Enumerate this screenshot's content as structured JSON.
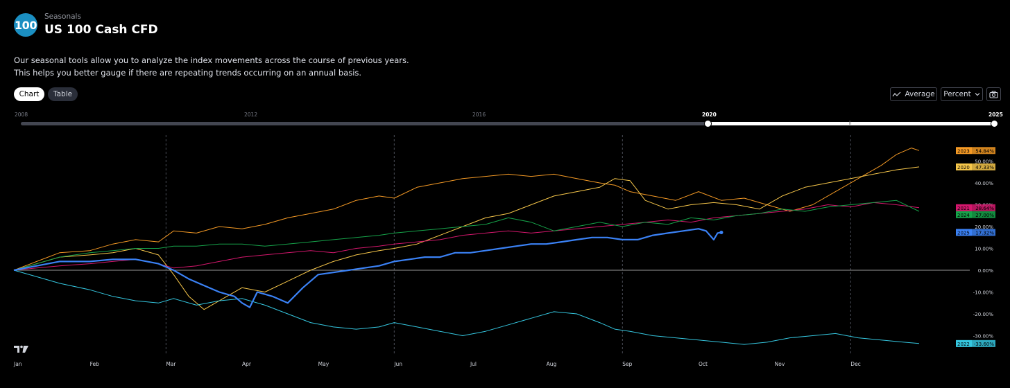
{
  "header": {
    "badge": "100",
    "section": "Seasonals",
    "title": "US 100 Cash CFD",
    "description_lines": [
      "Our seasonal tools allow you to analyze the index movements across the course of previous years.",
      "This helps you better gauge if there are repeating trends occurring on an annual basis."
    ]
  },
  "tabs": [
    {
      "label": "Chart",
      "active": true
    },
    {
      "label": "Table",
      "active": false
    }
  ],
  "controls": {
    "average_label": "Average",
    "percent_label": "Percent",
    "icons": [
      "line-chart-icon",
      "chevron-down-icon",
      "camera-icon"
    ]
  },
  "year_slider": {
    "ticks": [
      "2008",
      "2012",
      "2016",
      "2020",
      "2025"
    ],
    "selected_from": "2020",
    "selected_to": "2025"
  },
  "colors": {
    "background": "#000000",
    "2020": "#f7c74a",
    "2021": "#d5176d",
    "2022": "#35c7e0",
    "2023": "#f59a25",
    "2024": "#16a34a",
    "2025": "#3b82f6"
  },
  "chart_data": {
    "type": "line",
    "x_axis": {
      "type": "month",
      "ticks": [
        "Jan",
        "Feb",
        "Mar",
        "Apr",
        "May",
        "Jun",
        "Jul",
        "Aug",
        "Sep",
        "Oct",
        "Nov",
        "Dec"
      ],
      "range_months": [
        0,
        11.9
      ],
      "quarter_gridlines_at": [
        "Mar",
        "Jun",
        "Sep",
        "Dec"
      ]
    },
    "y_axis": {
      "unit": "%",
      "ticks": [
        "50.00%",
        "40.00%",
        "30.00%",
        "20.00%",
        "10.00%",
        "0.00%",
        "-10.00%",
        "-20.00%",
        "-30.00%"
      ],
      "range": [
        -42,
        60
      ],
      "zero_line": true
    },
    "series": [
      {
        "name": "2023",
        "label": "54.84%",
        "color": "#f59a25",
        "width": 1,
        "points": [
          [
            0,
            0
          ],
          [
            0.3,
            4
          ],
          [
            0.6,
            8
          ],
          [
            1,
            9
          ],
          [
            1.3,
            12
          ],
          [
            1.6,
            14
          ],
          [
            1.9,
            13
          ],
          [
            2.1,
            18
          ],
          [
            2.4,
            17
          ],
          [
            2.7,
            20
          ],
          [
            3,
            19
          ],
          [
            3.3,
            21
          ],
          [
            3.6,
            24
          ],
          [
            3.9,
            26
          ],
          [
            4.2,
            28
          ],
          [
            4.5,
            32
          ],
          [
            4.8,
            34
          ],
          [
            5,
            33
          ],
          [
            5.3,
            38
          ],
          [
            5.6,
            40
          ],
          [
            5.9,
            42
          ],
          [
            6.2,
            43
          ],
          [
            6.5,
            44
          ],
          [
            6.8,
            43
          ],
          [
            7.1,
            44
          ],
          [
            7.4,
            42
          ],
          [
            7.7,
            40
          ],
          [
            7.9,
            39
          ],
          [
            8.1,
            36
          ],
          [
            8.4,
            34
          ],
          [
            8.7,
            32
          ],
          [
            9,
            36
          ],
          [
            9.3,
            32
          ],
          [
            9.6,
            33
          ],
          [
            9.9,
            30
          ],
          [
            10.2,
            27
          ],
          [
            10.5,
            30
          ],
          [
            10.8,
            36
          ],
          [
            11.1,
            42
          ],
          [
            11.4,
            48
          ],
          [
            11.6,
            53
          ],
          [
            11.8,
            56
          ],
          [
            11.9,
            54.84
          ]
        ]
      },
      {
        "name": "2020",
        "label": "47.33%",
        "color": "#f7c74a",
        "width": 1,
        "points": [
          [
            0,
            0
          ],
          [
            0.3,
            3
          ],
          [
            0.6,
            6
          ],
          [
            1,
            7
          ],
          [
            1.3,
            8
          ],
          [
            1.6,
            10
          ],
          [
            1.9,
            7
          ],
          [
            2.1,
            -2
          ],
          [
            2.3,
            -12
          ],
          [
            2.5,
            -18
          ],
          [
            2.7,
            -14
          ],
          [
            3,
            -8
          ],
          [
            3.3,
            -10
          ],
          [
            3.6,
            -5
          ],
          [
            3.9,
            0
          ],
          [
            4.2,
            4
          ],
          [
            4.5,
            7
          ],
          [
            4.8,
            9
          ],
          [
            5,
            10
          ],
          [
            5.3,
            12
          ],
          [
            5.6,
            16
          ],
          [
            5.9,
            20
          ],
          [
            6.2,
            24
          ],
          [
            6.5,
            26
          ],
          [
            6.8,
            30
          ],
          [
            7.1,
            34
          ],
          [
            7.4,
            36
          ],
          [
            7.7,
            38
          ],
          [
            7.9,
            42
          ],
          [
            8.1,
            41
          ],
          [
            8.3,
            32
          ],
          [
            8.6,
            28
          ],
          [
            8.9,
            30
          ],
          [
            9.2,
            31
          ],
          [
            9.5,
            30
          ],
          [
            9.8,
            28
          ],
          [
            10.1,
            34
          ],
          [
            10.4,
            38
          ],
          [
            10.7,
            40
          ],
          [
            11,
            42
          ],
          [
            11.3,
            44
          ],
          [
            11.6,
            46
          ],
          [
            11.9,
            47.33
          ]
        ]
      },
      {
        "name": "2021",
        "label": "28.64%",
        "color": "#d5176d",
        "width": 1,
        "points": [
          [
            0,
            0
          ],
          [
            0.3,
            1
          ],
          [
            0.6,
            2
          ],
          [
            1,
            3
          ],
          [
            1.3,
            4
          ],
          [
            1.6,
            5
          ],
          [
            1.9,
            3
          ],
          [
            2.1,
            1
          ],
          [
            2.4,
            2
          ],
          [
            2.7,
            4
          ],
          [
            3,
            6
          ],
          [
            3.3,
            7
          ],
          [
            3.6,
            8
          ],
          [
            3.9,
            9
          ],
          [
            4.2,
            8
          ],
          [
            4.5,
            10
          ],
          [
            4.8,
            11
          ],
          [
            5,
            12
          ],
          [
            5.3,
            13
          ],
          [
            5.6,
            14
          ],
          [
            5.9,
            16
          ],
          [
            6.2,
            17
          ],
          [
            6.5,
            18
          ],
          [
            6.8,
            17
          ],
          [
            7.1,
            18
          ],
          [
            7.4,
            19
          ],
          [
            7.7,
            20
          ],
          [
            8,
            21
          ],
          [
            8.3,
            22
          ],
          [
            8.6,
            23
          ],
          [
            8.9,
            22
          ],
          [
            9.2,
            24
          ],
          [
            9.5,
            25
          ],
          [
            9.8,
            26
          ],
          [
            10.1,
            27
          ],
          [
            10.4,
            28
          ],
          [
            10.7,
            30
          ],
          [
            11,
            29
          ],
          [
            11.3,
            31
          ],
          [
            11.6,
            30
          ],
          [
            11.9,
            28.64
          ]
        ]
      },
      {
        "name": "2024",
        "label": "27.00%",
        "color": "#16a34a",
        "width": 1,
        "points": [
          [
            0,
            0
          ],
          [
            0.3,
            3
          ],
          [
            0.6,
            6
          ],
          [
            1,
            8
          ],
          [
            1.3,
            9
          ],
          [
            1.6,
            10
          ],
          [
            1.9,
            10
          ],
          [
            2.1,
            11
          ],
          [
            2.4,
            11
          ],
          [
            2.7,
            12
          ],
          [
            3,
            12
          ],
          [
            3.3,
            11
          ],
          [
            3.6,
            12
          ],
          [
            3.9,
            13
          ],
          [
            4.2,
            14
          ],
          [
            4.5,
            15
          ],
          [
            4.8,
            16
          ],
          [
            5,
            17
          ],
          [
            5.3,
            18
          ],
          [
            5.6,
            19
          ],
          [
            5.9,
            20
          ],
          [
            6.2,
            21
          ],
          [
            6.5,
            24
          ],
          [
            6.8,
            22
          ],
          [
            7.1,
            18
          ],
          [
            7.4,
            20
          ],
          [
            7.7,
            22
          ],
          [
            8,
            20
          ],
          [
            8.3,
            22
          ],
          [
            8.6,
            21
          ],
          [
            8.9,
            24
          ],
          [
            9.2,
            23
          ],
          [
            9.5,
            25
          ],
          [
            9.8,
            26
          ],
          [
            10.1,
            28
          ],
          [
            10.4,
            27
          ],
          [
            10.7,
            29
          ],
          [
            11,
            30
          ],
          [
            11.3,
            31
          ],
          [
            11.6,
            32
          ],
          [
            11.9,
            27
          ]
        ]
      },
      {
        "name": "2022",
        "label": "-33.60%",
        "color": "#35c7e0",
        "width": 1,
        "points": [
          [
            0,
            0
          ],
          [
            0.3,
            -3
          ],
          [
            0.6,
            -6
          ],
          [
            1,
            -9
          ],
          [
            1.3,
            -12
          ],
          [
            1.6,
            -14
          ],
          [
            1.9,
            -15
          ],
          [
            2.1,
            -13
          ],
          [
            2.4,
            -16
          ],
          [
            2.7,
            -14
          ],
          [
            3,
            -13
          ],
          [
            3.3,
            -16
          ],
          [
            3.6,
            -20
          ],
          [
            3.9,
            -24
          ],
          [
            4.2,
            -26
          ],
          [
            4.5,
            -27
          ],
          [
            4.8,
            -26
          ],
          [
            5,
            -24
          ],
          [
            5.3,
            -26
          ],
          [
            5.6,
            -28
          ],
          [
            5.9,
            -30
          ],
          [
            6.2,
            -28
          ],
          [
            6.5,
            -25
          ],
          [
            6.8,
            -22
          ],
          [
            7.1,
            -19
          ],
          [
            7.4,
            -20
          ],
          [
            7.7,
            -24
          ],
          [
            7.9,
            -27
          ],
          [
            8.1,
            -28
          ],
          [
            8.4,
            -30
          ],
          [
            8.7,
            -31
          ],
          [
            9,
            -32
          ],
          [
            9.3,
            -33
          ],
          [
            9.6,
            -34
          ],
          [
            9.9,
            -33
          ],
          [
            10.2,
            -31
          ],
          [
            10.5,
            -30
          ],
          [
            10.8,
            -29
          ],
          [
            11.1,
            -31
          ],
          [
            11.4,
            -32
          ],
          [
            11.7,
            -33
          ],
          [
            11.9,
            -33.6
          ]
        ]
      },
      {
        "name": "2025",
        "label": "17.32%",
        "color": "#3b82f6",
        "width": 2.2,
        "points": [
          [
            0,
            0
          ],
          [
            0.3,
            2
          ],
          [
            0.6,
            4
          ],
          [
            1,
            4
          ],
          [
            1.3,
            5
          ],
          [
            1.6,
            5
          ],
          [
            1.9,
            3
          ],
          [
            2.1,
            0
          ],
          [
            2.3,
            -4
          ],
          [
            2.5,
            -7
          ],
          [
            2.7,
            -10
          ],
          [
            2.9,
            -12
          ],
          [
            3,
            -15
          ],
          [
            3.1,
            -17
          ],
          [
            3.2,
            -10
          ],
          [
            3.4,
            -12
          ],
          [
            3.6,
            -15
          ],
          [
            3.8,
            -8
          ],
          [
            4,
            -2
          ],
          [
            4.2,
            -1
          ],
          [
            4.4,
            0
          ],
          [
            4.6,
            1
          ],
          [
            4.8,
            2
          ],
          [
            5,
            4
          ],
          [
            5.2,
            5
          ],
          [
            5.4,
            6
          ],
          [
            5.6,
            6
          ],
          [
            5.8,
            8
          ],
          [
            6,
            8
          ],
          [
            6.2,
            9
          ],
          [
            6.4,
            10
          ],
          [
            6.6,
            11
          ],
          [
            6.8,
            12
          ],
          [
            7,
            12
          ],
          [
            7.2,
            13
          ],
          [
            7.4,
            14
          ],
          [
            7.6,
            15
          ],
          [
            7.8,
            15
          ],
          [
            8,
            14
          ],
          [
            8.2,
            14
          ],
          [
            8.4,
            16
          ],
          [
            8.6,
            17
          ],
          [
            8.8,
            18
          ],
          [
            9,
            19
          ],
          [
            9.1,
            18
          ],
          [
            9.2,
            14
          ],
          [
            9.25,
            17
          ],
          [
            9.3,
            17.32
          ]
        ]
      }
    ]
  },
  "watermark": "tradingview-logo-icon"
}
